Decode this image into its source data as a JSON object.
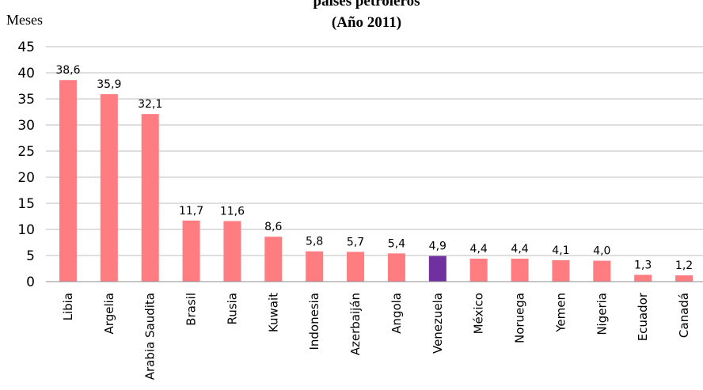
{
  "chart_data": {
    "type": "bar",
    "title_lines": [
      "países petroleros",
      "(Año 2011)"
    ],
    "ylabel": "Meses",
    "xlabel": "",
    "ylim": [
      0,
      45
    ],
    "yticks": [
      0,
      5,
      10,
      15,
      20,
      25,
      30,
      35,
      40,
      45
    ],
    "grid": true,
    "categories": [
      "Libia",
      "Argelia",
      "Arabia Saudita",
      "Brasil",
      "Rusia",
      "Kuwait",
      "Indonesia",
      "Azerbaiján",
      "Angola",
      "Venezuela",
      "México",
      "Noruega",
      "Yemen",
      "Nigeria",
      "Ecuador",
      "Canadá"
    ],
    "values": [
      38.6,
      35.9,
      32.1,
      11.7,
      11.6,
      8.6,
      5.8,
      5.7,
      5.4,
      4.9,
      4.4,
      4.4,
      4.1,
      4.0,
      1.3,
      1.2
    ],
    "value_labels": [
      "38,6",
      "35,9",
      "32,1",
      "11,7",
      "11,6",
      "8,6",
      "5,8",
      "5,7",
      "5,4",
      "4,9",
      "4,4",
      "4,4",
      "4,1",
      "4,0",
      "1,3",
      "1,2"
    ],
    "colors": {
      "default": "#ff7c80",
      "highlight": "#7030a0"
    },
    "highlight_category": "Venezuela"
  }
}
